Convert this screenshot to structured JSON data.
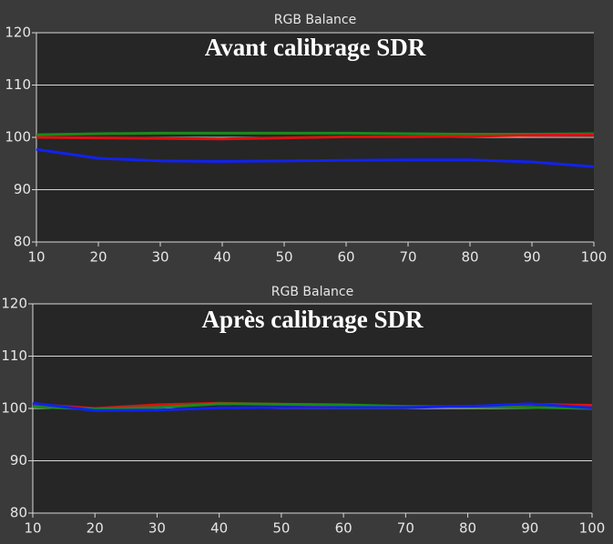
{
  "chart_data": [
    {
      "type": "line",
      "title": "RGB Balance",
      "annotation": "Avant calibrage SDR",
      "x": [
        10,
        20,
        30,
        40,
        50,
        60,
        70,
        80,
        90,
        100
      ],
      "series": [
        {
          "color": "#1a8a1a",
          "values": [
            100.5,
            100.7,
            100.8,
            100.8,
            100.8,
            100.8,
            100.7,
            100.6,
            100.6,
            100.7
          ]
        },
        {
          "color": "#dd1111",
          "values": [
            100,
            99.9,
            99.8,
            99.7,
            99.9,
            100.1,
            100.1,
            100.2,
            100.4,
            100.5
          ]
        },
        {
          "color": "#1122ee",
          "values": [
            97.7,
            96,
            95.5,
            95.4,
            95.5,
            95.6,
            95.7,
            95.7,
            95.3,
            94.4
          ]
        }
      ],
      "xlim": [
        10,
        100
      ],
      "xticks": [
        10,
        20,
        30,
        40,
        50,
        60,
        70,
        80,
        90,
        100
      ],
      "ylim": [
        80,
        120
      ],
      "yticks": [
        80,
        90,
        100,
        110,
        120
      ],
      "grid": true
    },
    {
      "type": "line",
      "title": "RGB Balance",
      "annotation": "Après calibrage SDR",
      "x": [
        10,
        20,
        30,
        40,
        50,
        60,
        70,
        80,
        90,
        100
      ],
      "series": [
        {
          "color": "#dd1111",
          "values": [
            100.8,
            100,
            100.7,
            101,
            100.8,
            100.6,
            100.3,
            100.4,
            100.8,
            100.6
          ]
        },
        {
          "color": "#1a8a1a",
          "values": [
            100.3,
            99.9,
            100.2,
            100.9,
            100.8,
            100.7,
            100.4,
            100.3,
            100.2,
            100
          ]
        },
        {
          "color": "#1122ee",
          "values": [
            101,
            99.6,
            99.7,
            100.1,
            100.2,
            100.2,
            100.2,
            100.4,
            100.9,
            100.1
          ]
        }
      ],
      "xlim": [
        10,
        100
      ],
      "xticks": [
        10,
        20,
        30,
        40,
        50,
        60,
        70,
        80,
        90,
        100
      ],
      "ylim": [
        80,
        120
      ],
      "yticks": [
        80,
        90,
        100,
        110,
        120
      ],
      "grid": true
    }
  ]
}
